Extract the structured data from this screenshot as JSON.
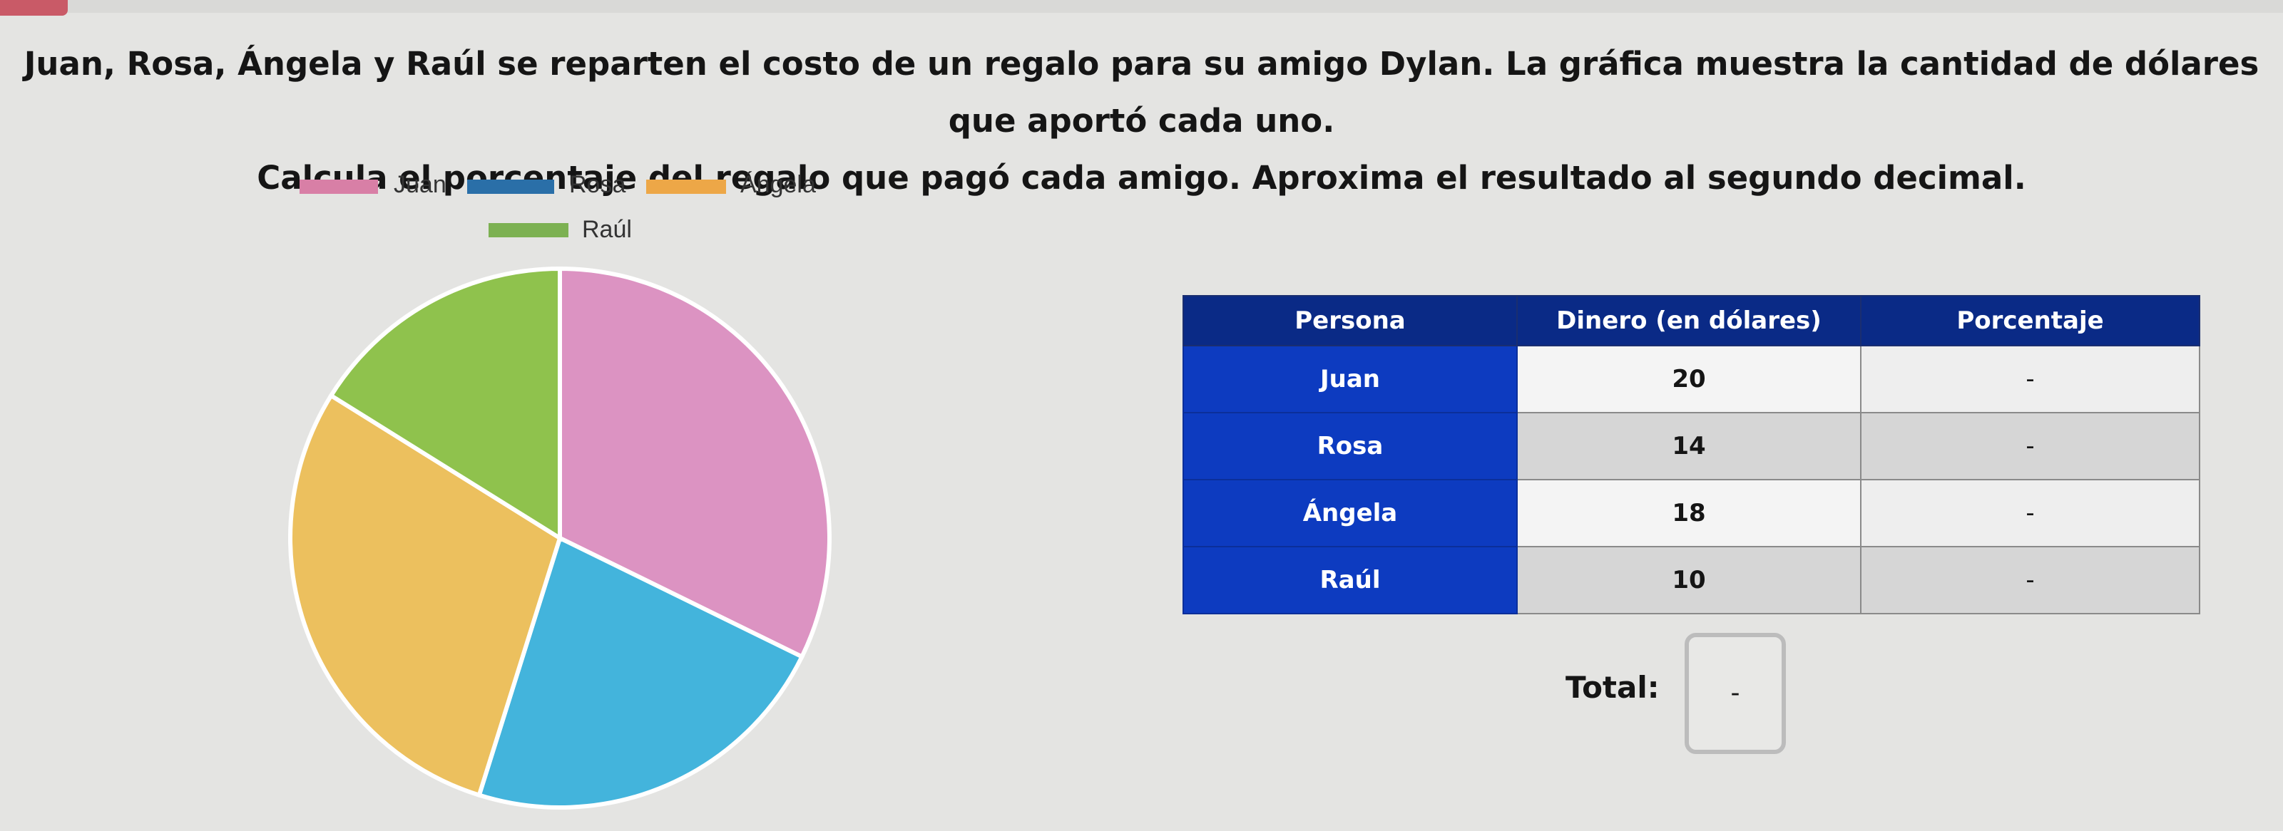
{
  "question": {
    "line1": "Juan, Rosa, Ángela y Raúl se reparten el costo de un regalo para su amigo Dylan. La gráfica muestra la cantidad de dólares que aportó cada uno.",
    "line2": "Calcula el porcentaje del regalo que pagó cada amigo. Aproxima el resultado al segundo decimal."
  },
  "chart_data": {
    "type": "pie",
    "categories": [
      "Juan",
      "Rosa",
      "Ángela",
      "Raúl"
    ],
    "values": [
      20,
      14,
      18,
      10
    ],
    "colors": [
      "#dc93c2",
      "#43b4dc",
      "#ecc05e",
      "#8fc24d"
    ],
    "legend_colors": [
      "#d87fa6",
      "#2a6fa8",
      "#eda747",
      "#7cb152"
    ],
    "legend_placement": "top"
  },
  "table": {
    "headers": [
      "Persona",
      "Dinero (en dólares)",
      "Porcentaje"
    ],
    "rows": [
      {
        "persona": "Juan",
        "dinero": "20",
        "porcentaje": "-"
      },
      {
        "persona": "Rosa",
        "dinero": "14",
        "porcentaje": "-"
      },
      {
        "persona": "Ángela",
        "dinero": "18",
        "porcentaje": "-"
      },
      {
        "persona": "Raúl",
        "dinero": "10",
        "porcentaje": "-"
      }
    ]
  },
  "total": {
    "label": "Total:",
    "value": "-"
  }
}
